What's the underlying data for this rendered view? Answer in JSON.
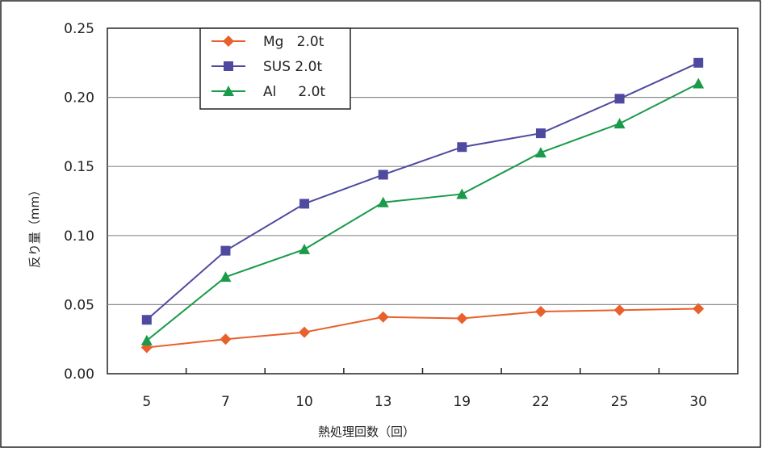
{
  "chart_data": {
    "type": "line",
    "title": "",
    "xlabel": "熱処理回数（回）",
    "ylabel": "反り量（mm）",
    "categories": [
      "5",
      "7",
      "10",
      "13",
      "19",
      "22",
      "25",
      "30"
    ],
    "ylim": [
      0,
      0.25
    ],
    "yticks": [
      "0.00",
      "0.05",
      "0.10",
      "0.15",
      "0.20",
      "0.25"
    ],
    "grid": true,
    "legend_position": "top-left",
    "series": [
      {
        "name": "Mg   2.0t",
        "marker": "diamond",
        "color": "#e8602c",
        "values": [
          0.019,
          0.025,
          0.03,
          0.041,
          0.04,
          0.045,
          0.046,
          0.047
        ]
      },
      {
        "name": "SUS 2.0t",
        "marker": "square",
        "color": "#4f4aa0",
        "values": [
          0.039,
          0.089,
          0.123,
          0.144,
          0.164,
          0.174,
          0.199,
          0.225
        ]
      },
      {
        "name": "Al     2.0t",
        "marker": "triangle",
        "color": "#1a9a4a",
        "values": [
          0.024,
          0.07,
          0.09,
          0.124,
          0.13,
          0.16,
          0.181,
          0.21
        ]
      }
    ]
  }
}
